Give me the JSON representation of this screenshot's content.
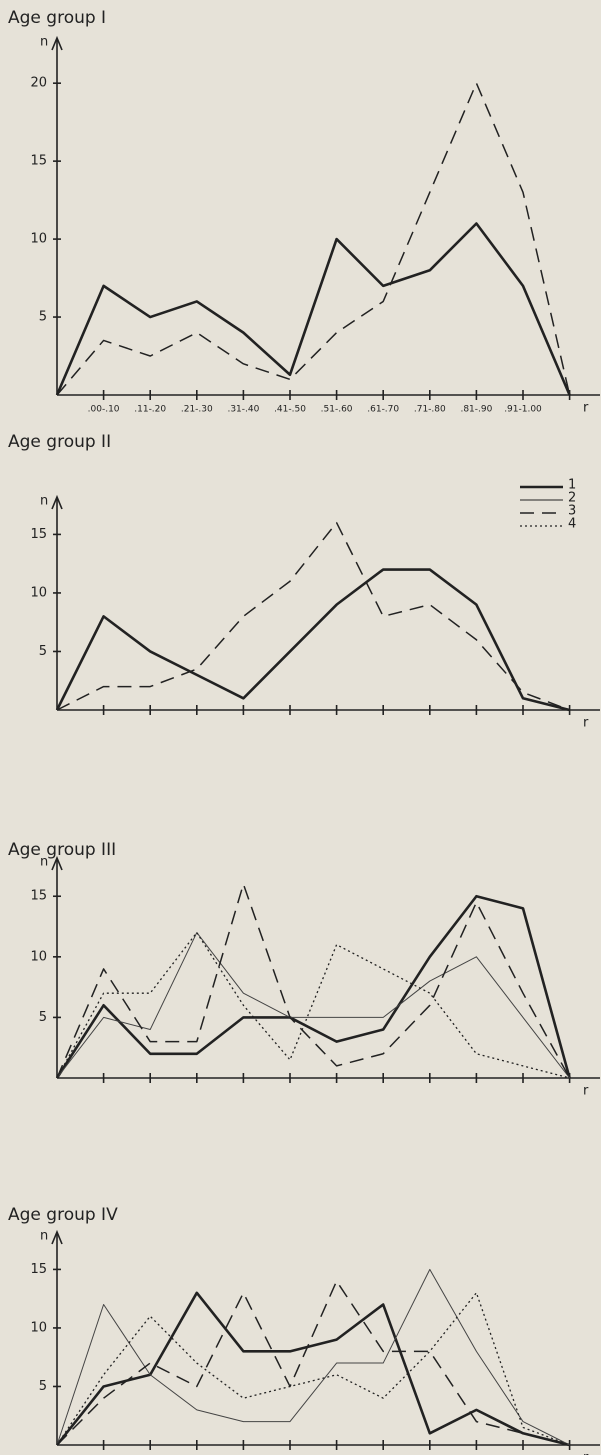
{
  "chart_data": [
    {
      "type": "line",
      "title": "Age group I",
      "y_label": "n",
      "x_label": "r",
      "categories": [
        null,
        ".00-.10",
        ".11-.20",
        ".21-.30",
        ".31-.40",
        ".41-.50",
        ".51-.60",
        ".61-.70",
        ".71-.80",
        ".81-.90",
        ".91-1.00",
        null
      ],
      "ylim": [
        0,
        22
      ],
      "yticks": [
        5,
        10,
        15,
        20
      ],
      "series": [
        {
          "name": "1",
          "color": "#222222",
          "values": [
            0,
            7,
            5,
            6,
            4,
            1.3,
            10,
            7,
            8,
            11,
            7,
            0
          ]
        },
        {
          "name": "3",
          "color": "#222222",
          "values": [
            0,
            3.5,
            2.5,
            4,
            2,
            1,
            4,
            6,
            13,
            20,
            13,
            0
          ]
        }
      ]
    },
    {
      "type": "line",
      "title": "Age group II",
      "y_label": "n",
      "x_label": "r",
      "categories": [
        null,
        null,
        null,
        null,
        null,
        null,
        null,
        null,
        null,
        null,
        null,
        null
      ],
      "ylim": [
        0,
        17
      ],
      "yticks": [
        5,
        10,
        15
      ],
      "legend": [
        "1",
        "2",
        "3",
        "4"
      ],
      "series": [
        {
          "name": "1",
          "color": "#222222",
          "values": [
            0,
            8,
            5,
            3,
            1,
            5,
            9,
            12,
            12,
            9,
            1,
            0
          ]
        },
        {
          "name": "3",
          "color": "#222222",
          "values": [
            0,
            2,
            2,
            3.5,
            8,
            11,
            16,
            8,
            9,
            6,
            1.5,
            0
          ]
        }
      ]
    },
    {
      "type": "line",
      "title": "Age group III",
      "y_label": "n",
      "x_label": "r",
      "categories": [
        null,
        null,
        null,
        null,
        null,
        null,
        null,
        null,
        null,
        null,
        null,
        null
      ],
      "ylim": [
        0,
        17
      ],
      "yticks": [
        5,
        10,
        15
      ],
      "series": [
        {
          "name": "1",
          "color": "#222222",
          "values": [
            0,
            6,
            2,
            2,
            5,
            5,
            3,
            4,
            10,
            15,
            14,
            0
          ]
        },
        {
          "name": "2",
          "color": "#444444",
          "values": [
            0,
            5,
            4,
            12,
            7,
            5,
            5,
            5,
            8,
            10,
            5,
            0
          ]
        },
        {
          "name": "3",
          "color": "#222222",
          "values": [
            0,
            9,
            3,
            3,
            16,
            5,
            1,
            2,
            6,
            14.5,
            7,
            0
          ]
        },
        {
          "name": "4",
          "color": "#222222",
          "values": [
            0,
            7,
            7,
            12,
            6,
            1.5,
            11,
            9,
            7,
            2,
            1,
            0
          ]
        }
      ]
    },
    {
      "type": "line",
      "title": "Age group IV",
      "y_label": "n",
      "x_label": "r",
      "categories": [
        null,
        ".00-.10",
        ".11-.20",
        ".21-.30",
        ".31-.40",
        ".41-.50",
        ".51-.60",
        ".61-.70",
        ".71-.80",
        ".81-.90",
        ".91-1.00",
        null
      ],
      "ylim": [
        0,
        17
      ],
      "yticks": [
        5,
        10,
        15
      ],
      "series": [
        {
          "name": "1",
          "color": "#222222",
          "values": [
            0,
            5,
            6,
            13,
            8,
            8,
            9,
            12,
            1,
            3,
            1,
            0
          ]
        },
        {
          "name": "2",
          "color": "#444444",
          "values": [
            0,
            12,
            6,
            3,
            2,
            2,
            7,
            7,
            15,
            8,
            2,
            0
          ]
        },
        {
          "name": "3",
          "color": "#222222",
          "values": [
            0,
            4,
            7,
            5,
            13,
            5,
            14,
            8,
            8,
            2,
            1,
            0
          ]
        },
        {
          "name": "4",
          "color": "#222222",
          "values": [
            0,
            6,
            11,
            7,
            4,
            5,
            6,
            4,
            8,
            13,
            1.5,
            0
          ]
        }
      ]
    }
  ]
}
